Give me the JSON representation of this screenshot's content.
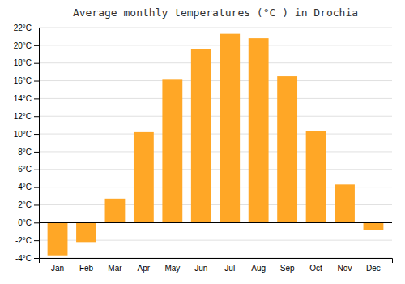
{
  "chart_data": {
    "type": "bar",
    "title": "Average monthly temperatures (°C ) in Drochia",
    "categories": [
      "Jan",
      "Feb",
      "Mar",
      "Apr",
      "May",
      "Jun",
      "Jul",
      "Aug",
      "Sep",
      "Oct",
      "Nov",
      "Dec"
    ],
    "values": [
      -3.7,
      -2.2,
      2.7,
      10.2,
      16.2,
      19.6,
      21.3,
      20.8,
      16.5,
      10.3,
      4.3,
      -0.8
    ],
    "color": "#FFA726",
    "ylim": [
      -4,
      22
    ],
    "yticks": [
      {
        "value": -4,
        "label": "-4°C"
      },
      {
        "value": -2,
        "label": "-2°C"
      },
      {
        "value": 0,
        "label": "0°C"
      },
      {
        "value": 2,
        "label": "2°C"
      },
      {
        "value": 4,
        "label": "4°C"
      },
      {
        "value": 6,
        "label": "6°C"
      },
      {
        "value": 8,
        "label": "8°C"
      },
      {
        "value": 10,
        "label": "10°C"
      },
      {
        "value": 12,
        "label": "12°C"
      },
      {
        "value": 14,
        "label": "14°C"
      },
      {
        "value": 16,
        "label": "16°C"
      },
      {
        "value": 18,
        "label": "18°C"
      },
      {
        "value": 20,
        "label": "20°C"
      },
      {
        "value": 22,
        "label": "22°C"
      }
    ],
    "grid": true
  }
}
